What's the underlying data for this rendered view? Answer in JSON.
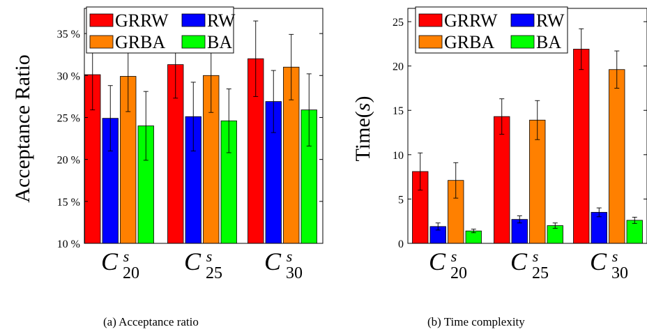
{
  "chart_data": [
    {
      "type": "bar",
      "title": "",
      "caption": "(a) Acceptance ratio",
      "xlabel": "",
      "ylabel": "Acceptance Ratio",
      "ylim": [
        10,
        38
      ],
      "yticks": [
        10,
        15,
        20,
        25,
        30,
        35
      ],
      "ytick_suffix": " %",
      "categories": [
        {
          "base": "C",
          "sup": "s",
          "sub": "20"
        },
        {
          "base": "C",
          "sup": "s",
          "sub": "25"
        },
        {
          "base": "C",
          "sup": "s",
          "sub": "30"
        }
      ],
      "series": [
        {
          "name": "GRRW",
          "color": "#ff0000",
          "values": [
            30.1,
            31.3,
            32.0
          ],
          "errors": [
            4.2,
            4.0,
            4.5
          ]
        },
        {
          "name": "RW",
          "color": "#0000ff",
          "values": [
            24.9,
            25.1,
            26.9
          ],
          "errors": [
            3.9,
            4.1,
            3.7
          ]
        },
        {
          "name": "GRBA",
          "color": "#ff8000",
          "values": [
            29.9,
            30.0,
            31.0
          ],
          "errors": [
            4.2,
            4.4,
            3.9
          ]
        },
        {
          "name": "BA",
          "color": "#00ff00",
          "values": [
            24.0,
            24.6,
            25.9
          ],
          "errors": [
            4.1,
            3.8,
            4.3
          ]
        }
      ],
      "grid": false,
      "legend_position": "top-left"
    },
    {
      "type": "bar",
      "title": "",
      "caption": "(b) Time complexity",
      "xlabel": "",
      "ylabel": "Time(s)",
      "ylim": [
        0,
        26.5
      ],
      "yticks": [
        0,
        5,
        10,
        15,
        20,
        25
      ],
      "ytick_suffix": "",
      "categories": [
        {
          "base": "C",
          "sup": "s",
          "sub": "20"
        },
        {
          "base": "C",
          "sup": "s",
          "sub": "25"
        },
        {
          "base": "C",
          "sup": "s",
          "sub": "30"
        }
      ],
      "series": [
        {
          "name": "GRRW",
          "color": "#ff0000",
          "values": [
            8.1,
            14.3,
            21.9
          ],
          "errors": [
            2.1,
            2.0,
            2.3
          ]
        },
        {
          "name": "RW",
          "color": "#0000ff",
          "values": [
            1.9,
            2.7,
            3.5
          ],
          "errors": [
            0.4,
            0.4,
            0.5
          ]
        },
        {
          "name": "GRBA",
          "color": "#ff8000",
          "values": [
            7.1,
            13.9,
            19.6
          ],
          "errors": [
            2.0,
            2.2,
            2.1
          ]
        },
        {
          "name": "BA",
          "color": "#00ff00",
          "values": [
            1.4,
            2.0,
            2.6
          ],
          "errors": [
            0.2,
            0.3,
            0.35
          ]
        }
      ],
      "grid": false,
      "legend_position": "top-left"
    }
  ]
}
